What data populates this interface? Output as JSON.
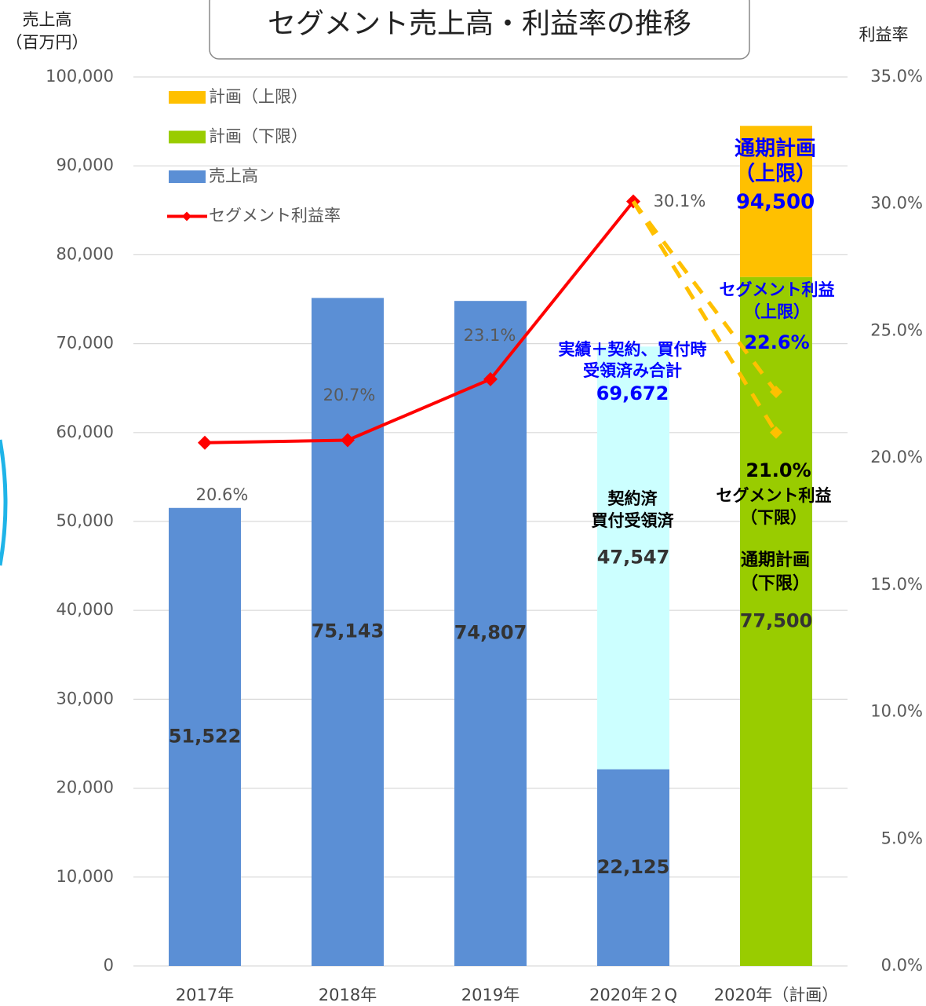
{
  "chart_data": {
    "type": "bar",
    "title": "セグメント売上高・利益率の推移",
    "y_label": [
      "売上高",
      "（百万円）"
    ],
    "y2_label": "利益率",
    "categories": [
      "2017年",
      "2018年",
      "2019年",
      "2020年２Q",
      "2020年（計画）"
    ],
    "stacked": true,
    "series": [
      {
        "name": "売上高",
        "type": "bar",
        "color": "#5b8fd5",
        "values": [
          51522,
          75143,
          74807,
          22125,
          null
        ],
        "value_labels": [
          "51,522",
          "75,143",
          "74,807",
          "22,125",
          null
        ]
      },
      {
        "type": "bar",
        "color": "#ccffff",
        "values": [
          null,
          null,
          null,
          47547,
          null
        ],
        "value_labels": [
          null,
          null,
          null,
          "47,547",
          null
        ]
      },
      {
        "name": "計画（下限）",
        "type": "bar",
        "color": "#99cc00",
        "values": [
          null,
          null,
          null,
          null,
          77500
        ],
        "value_labels": [
          null,
          null,
          null,
          null,
          "77,500"
        ]
      },
      {
        "name": "計画（上限）",
        "type": "bar",
        "color": "#ffc000",
        "values": [
          null,
          null,
          null,
          null,
          17000
        ]
      },
      {
        "name": "セグメント利益率",
        "type": "line",
        "axis": "y2",
        "color": "#ff0000",
        "values": [
          20.6,
          20.7,
          23.1,
          30.1,
          null
        ],
        "value_labels": [
          "20.6%",
          "20.7%",
          "23.1%",
          "30.1%",
          null
        ]
      },
      {
        "type": "line",
        "axis": "y2",
        "dashed": true,
        "color": "#ffc000",
        "values": [
          null,
          null,
          null,
          30.1,
          22.6
        ],
        "value_labels": [
          null,
          null,
          null,
          null,
          "22.6%"
        ]
      },
      {
        "type": "line",
        "axis": "y2",
        "dashed": true,
        "color": "#ffc000",
        "values": [
          null,
          null,
          null,
          30.1,
          21.0
        ],
        "value_labels": [
          null,
          null,
          null,
          null,
          "21.0%"
        ]
      }
    ],
    "annotations": [
      {
        "lines": [
          "通期計画",
          "（上限）",
          "94,500"
        ],
        "color": "#0000ff"
      },
      {
        "lines": [
          "セグメント利益",
          "（上限）"
        ],
        "color": "#0000ff"
      },
      {
        "lines": [
          "実績＋契約、買付時",
          "受領済み合計",
          "69,672"
        ],
        "color": "#0000ff"
      },
      {
        "lines": [
          "契約済",
          "買付受領済"
        ],
        "color": "#000000"
      },
      {
        "lines": [
          "セグメント利益",
          "（下限）"
        ],
        "color": "#000000"
      },
      {
        "lines": [
          "通期計画",
          "（下限）"
        ],
        "color": "#000000"
      }
    ],
    "ylim": [
      0,
      100000
    ],
    "yticks": [
      0,
      {
        "value": 10000,
        "label": "10,000"
      },
      {
        "value": 20000,
        "label": "20,000"
      },
      {
        "value": 30000,
        "label": "30,000"
      },
      {
        "value": 40000,
        "label": "40,000"
      },
      {
        "value": 50000,
        "label": "50,000"
      },
      {
        "value": 60000,
        "label": "60,000"
      },
      {
        "value": 70000,
        "label": "70,000"
      },
      {
        "value": 80000,
        "label": "80,000"
      },
      {
        "value": 90000,
        "label": "90,000"
      },
      {
        "value": 100000,
        "label": "100,000"
      }
    ],
    "y2lim": [
      0,
      35
    ],
    "y2ticks": [
      {
        "value": 0,
        "label": "0.0%"
      },
      {
        "value": 5,
        "label": "5.0%"
      },
      {
        "value": 10,
        "label": "10.0%"
      },
      {
        "value": 15,
        "label": "15.0%"
      },
      {
        "value": 20,
        "label": "20.0%"
      },
      {
        "value": 25,
        "label": "25.0%"
      },
      {
        "value": 30,
        "label": "30.0%"
      },
      {
        "value": 35,
        "label": "35.0%"
      }
    ],
    "grid": true,
    "legend": "upper left"
  }
}
